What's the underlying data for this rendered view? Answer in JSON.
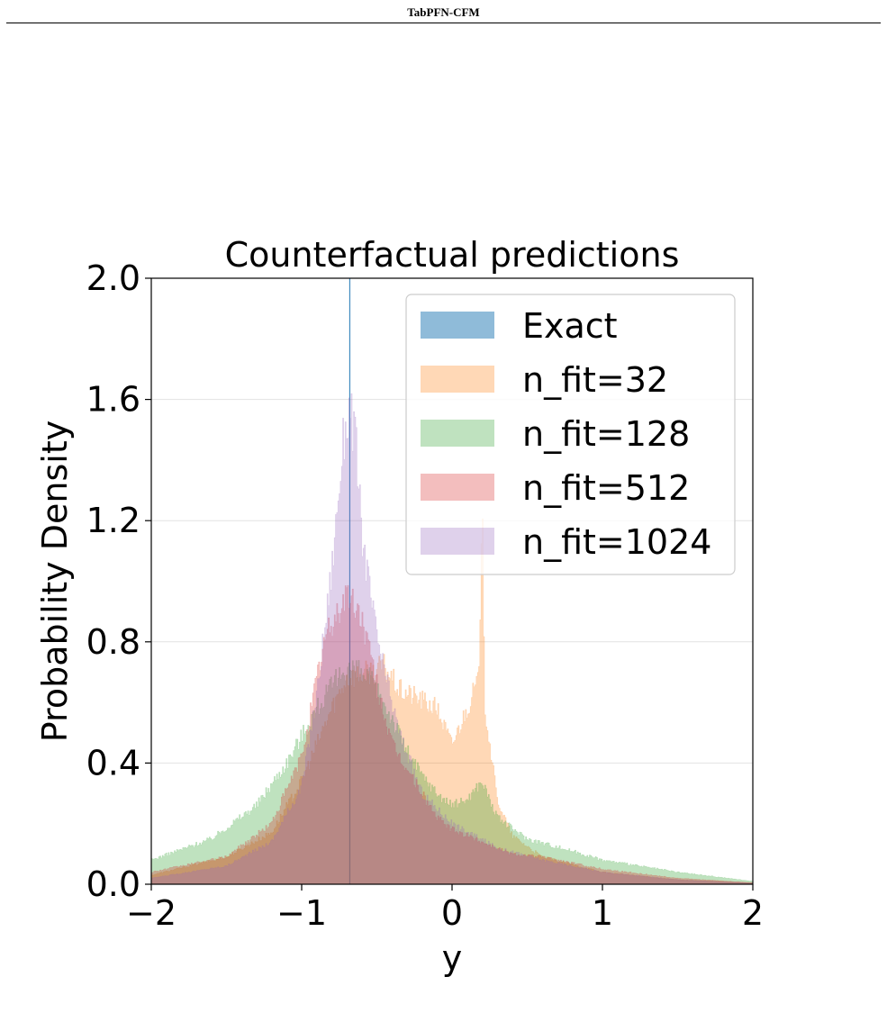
{
  "header": {
    "running_title": "TabPFN-CFM"
  },
  "chart_data": {
    "type": "histogram",
    "title": "Counterfactual predictions",
    "xlabel": "y",
    "ylabel": "Probability Density",
    "xlim": [
      -2,
      2
    ],
    "ylim": [
      0,
      2.0
    ],
    "xticks": [
      -2,
      -1,
      0,
      1,
      2
    ],
    "xtick_labels": [
      "−2",
      "−1",
      "0",
      "1",
      "2"
    ],
    "yticks": [
      0.0,
      0.4,
      0.8,
      1.2,
      1.6,
      2.0
    ],
    "ytick_labels": [
      "0.0",
      "0.4",
      "0.8",
      "1.2",
      "1.6",
      "2.0"
    ],
    "grid": "horizontal",
    "legend_position": "top-right",
    "series": [
      {
        "name": "Exact",
        "color": "#1f77b4",
        "alpha": 0.5,
        "spike_at": -0.68,
        "spike_height": 2.0
      },
      {
        "name": "n_fit=32",
        "color": "#ff7f0e",
        "alpha": 0.3,
        "x": [
          -2.0,
          -1.5,
          -1.2,
          -1.0,
          -0.8,
          -0.7,
          -0.55,
          -0.45,
          -0.35,
          -0.25,
          -0.1,
          0.0,
          0.1,
          0.18,
          0.2,
          0.22,
          0.3,
          0.4,
          0.6,
          1.0,
          1.5,
          2.0
        ],
        "y": [
          0.03,
          0.09,
          0.17,
          0.34,
          0.58,
          0.68,
          0.7,
          0.72,
          0.64,
          0.62,
          0.58,
          0.46,
          0.58,
          0.68,
          1.28,
          0.58,
          0.28,
          0.16,
          0.09,
          0.04,
          0.015,
          0.005
        ]
      },
      {
        "name": "n_fit=128",
        "color": "#2ca02c",
        "alpha": 0.3,
        "x": [
          -2.0,
          -1.6,
          -1.3,
          -1.1,
          -0.9,
          -0.7,
          -0.55,
          -0.4,
          -0.3,
          -0.2,
          -0.1,
          0.0,
          0.1,
          0.2,
          0.3,
          0.5,
          0.8,
          1.0,
          1.5,
          2.0
        ],
        "y": [
          0.08,
          0.15,
          0.26,
          0.4,
          0.58,
          0.72,
          0.68,
          0.55,
          0.44,
          0.36,
          0.3,
          0.26,
          0.28,
          0.34,
          0.22,
          0.15,
          0.11,
          0.08,
          0.04,
          0.01
        ]
      },
      {
        "name": "n_fit=512",
        "color": "#d62728",
        "alpha": 0.3,
        "x": [
          -2.0,
          -1.5,
          -1.2,
          -1.0,
          -0.85,
          -0.7,
          -0.6,
          -0.5,
          -0.4,
          -0.3,
          -0.2,
          -0.1,
          0.0,
          0.2,
          0.4,
          0.6,
          0.8,
          1.0,
          1.5,
          2.0
        ],
        "y": [
          0.04,
          0.09,
          0.2,
          0.42,
          0.8,
          0.96,
          0.88,
          0.66,
          0.46,
          0.38,
          0.3,
          0.22,
          0.18,
          0.14,
          0.1,
          0.09,
          0.07,
          0.05,
          0.02,
          0.005
        ]
      },
      {
        "name": "n_fit=1024",
        "color": "#9467bd",
        "alpha": 0.3,
        "x": [
          -2.0,
          -1.5,
          -1.2,
          -1.0,
          -0.9,
          -0.8,
          -0.72,
          -0.68,
          -0.64,
          -0.6,
          -0.52,
          -0.45,
          -0.35,
          -0.2,
          0.0,
          0.3,
          0.6,
          1.0,
          1.5,
          2.0
        ],
        "y": [
          0.02,
          0.06,
          0.14,
          0.32,
          0.62,
          1.04,
          1.48,
          1.58,
          1.46,
          1.16,
          0.88,
          0.7,
          0.5,
          0.3,
          0.2,
          0.12,
          0.08,
          0.04,
          0.015,
          0.004
        ]
      }
    ]
  }
}
